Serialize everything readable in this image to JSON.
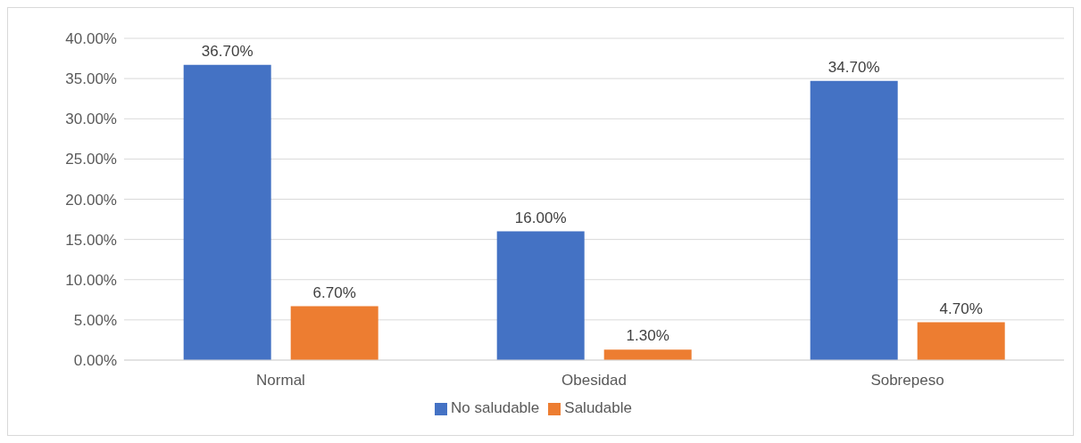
{
  "chart_data": {
    "type": "bar",
    "categories": [
      "Normal",
      "Obesidad",
      "Sobrepeso"
    ],
    "series": [
      {
        "name": "No saludable",
        "color": "#4472c4",
        "values": [
          36.7,
          16.0,
          34.7
        ],
        "value_labels": [
          "36.70%",
          "16.00%",
          "34.70%"
        ]
      },
      {
        "name": "Saludable",
        "color": "#ed7d31",
        "values": [
          6.7,
          1.3,
          4.7
        ],
        "value_labels": [
          "6.70%",
          "1.30%",
          "4.70%"
        ]
      }
    ],
    "ylim": [
      0,
      40
    ],
    "yticks": [
      {
        "value": 0,
        "label": "0.00%"
      },
      {
        "value": 5,
        "label": "5.00%"
      },
      {
        "value": 10,
        "label": "10.00%"
      },
      {
        "value": 15,
        "label": "15.00%"
      },
      {
        "value": 20,
        "label": "20.00%"
      },
      {
        "value": 25,
        "label": "25.00%"
      },
      {
        "value": 30,
        "label": "30.00%"
      },
      {
        "value": 35,
        "label": "35.00%"
      },
      {
        "value": 40,
        "label": "40.00%"
      }
    ],
    "grid": "y",
    "legend": "bottom"
  }
}
